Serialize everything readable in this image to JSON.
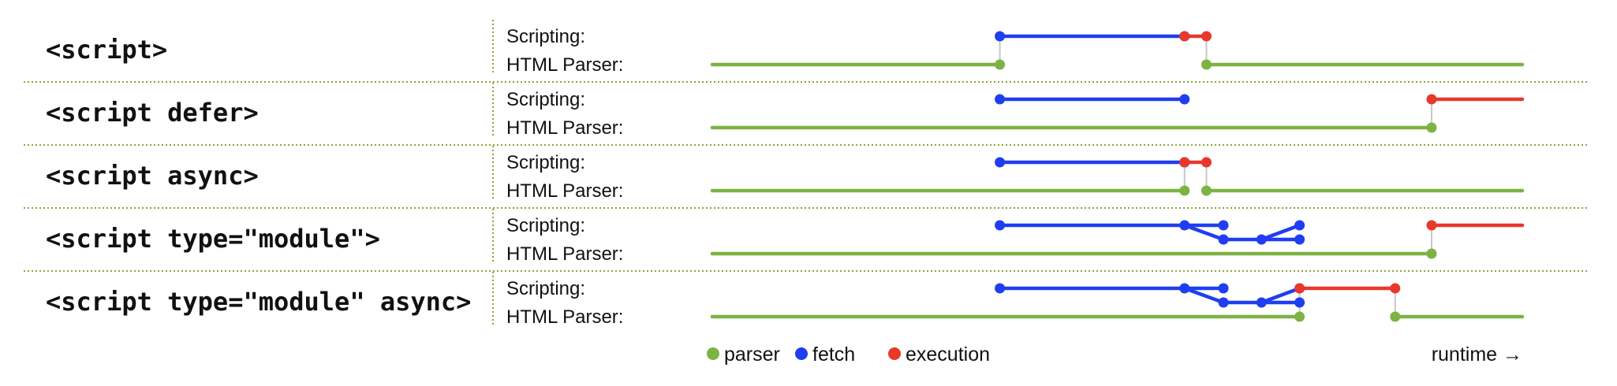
{
  "colors": {
    "parser": "#7cb342",
    "fetch": "#1f3ef0",
    "execution": "#e8382c",
    "connector": "#c8c8c8",
    "separator": "#8aa63a"
  },
  "lanes": {
    "scripting": "Scripting:",
    "parser": "HTML Parser:"
  },
  "rows": [
    {
      "label": "<script>",
      "parser": [
        [
          0,
          0.355
        ],
        [
          0.61,
          1.0
        ]
      ],
      "fetch": [
        [
          0.355,
          0.583
        ]
      ],
      "execution": [
        [
          0.583,
          0.61
        ]
      ],
      "split_fetch": null,
      "connectors": [
        0.355,
        0.61
      ]
    },
    {
      "label": "<script defer>",
      "parser": [
        [
          0,
          0.888
        ]
      ],
      "fetch": [
        [
          0.355,
          0.583
        ]
      ],
      "execution": [
        [
          0.888,
          1.0
        ]
      ],
      "split_fetch": null,
      "connectors": [
        0.888
      ]
    },
    {
      "label": "<script async>",
      "parser": [
        [
          0,
          0.583
        ],
        [
          0.61,
          1.0
        ]
      ],
      "fetch": [
        [
          0.355,
          0.583
        ]
      ],
      "execution": [
        [
          0.583,
          0.61
        ]
      ],
      "split_fetch": null,
      "connectors": [
        0.583,
        0.61
      ]
    },
    {
      "label": "<script type=\"module\">",
      "parser": [
        [
          0,
          0.888
        ]
      ],
      "fetch": [
        [
          0.355,
          0.583
        ]
      ],
      "execution": [
        [
          0.888,
          1.0
        ]
      ],
      "split_fetch": [
        0.583,
        0.631,
        0.678,
        0.725
      ],
      "connectors": [
        0.888
      ]
    },
    {
      "label": "<script type=\"module\" async>",
      "parser": [
        [
          0,
          0.725
        ],
        [
          0.843,
          1.0
        ]
      ],
      "fetch": [
        [
          0.355,
          0.583
        ]
      ],
      "execution": [
        [
          0.725,
          0.843
        ]
      ],
      "split_fetch": [
        0.583,
        0.631,
        0.678,
        0.725
      ],
      "connectors": [
        0.725,
        0.843
      ]
    }
  ],
  "legend": {
    "items": [
      {
        "label": "parser",
        "color": "#7cb342"
      },
      {
        "label": "fetch",
        "color": "#1f3ef0"
      },
      {
        "label": "execution",
        "color": "#e8382c"
      }
    ],
    "runtime": "runtime →"
  }
}
